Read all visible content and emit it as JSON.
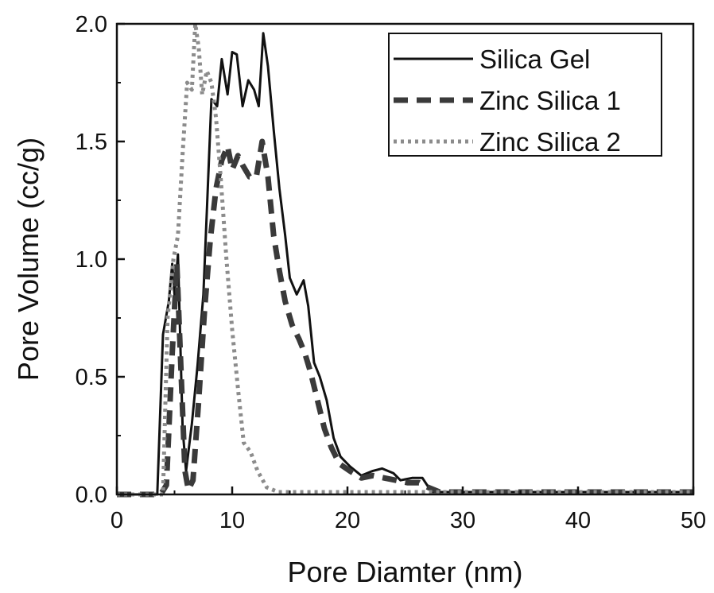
{
  "chart_data": {
    "type": "line",
    "title": "",
    "xlabel": "Pore Diamter (nm)",
    "ylabel": "Pore Volume (cc/g)",
    "xlim": [
      0,
      50
    ],
    "ylim": [
      0,
      2.0
    ],
    "xticks": [
      0,
      10,
      20,
      30,
      40,
      50
    ],
    "yticks": [
      0.0,
      0.5,
      1.0,
      1.5,
      2.0
    ],
    "xtick_labels": [
      "0",
      "10",
      "20",
      "30",
      "40",
      "50"
    ],
    "ytick_labels": [
      "0.0",
      "0.5",
      "1.0",
      "1.5",
      "2.0"
    ],
    "grid": false,
    "legend_position": "top-right",
    "series": [
      {
        "name": "Silica Gel",
        "line_style": "solid",
        "color": "#111111",
        "points": [
          [
            0,
            0
          ],
          [
            3.5,
            0
          ],
          [
            4.0,
            0.68
          ],
          [
            4.5,
            0.82
          ],
          [
            4.8,
            0.98
          ],
          [
            5.0,
            0.85
          ],
          [
            5.3,
            1.02
          ],
          [
            5.7,
            0.28
          ],
          [
            6.0,
            0.1
          ],
          [
            6.5,
            0.3
          ],
          [
            7.0,
            0.55
          ],
          [
            7.5,
            0.85
          ],
          [
            7.8,
            1.2
          ],
          [
            8.2,
            1.68
          ],
          [
            8.7,
            1.65
          ],
          [
            9.1,
            1.85
          ],
          [
            9.6,
            1.7
          ],
          [
            10.0,
            1.88
          ],
          [
            10.4,
            1.87
          ],
          [
            10.9,
            1.65
          ],
          [
            11.4,
            1.76
          ],
          [
            11.9,
            1.72
          ],
          [
            12.3,
            1.65
          ],
          [
            12.7,
            1.96
          ],
          [
            13.1,
            1.82
          ],
          [
            13.6,
            1.55
          ],
          [
            14.1,
            1.3
          ],
          [
            14.6,
            1.1
          ],
          [
            15.0,
            0.92
          ],
          [
            15.6,
            0.85
          ],
          [
            16.2,
            0.91
          ],
          [
            16.6,
            0.8
          ],
          [
            17.1,
            0.56
          ],
          [
            17.6,
            0.5
          ],
          [
            18.2,
            0.4
          ],
          [
            18.8,
            0.24
          ],
          [
            19.4,
            0.16
          ],
          [
            20.2,
            0.12
          ],
          [
            21.2,
            0.08
          ],
          [
            22.2,
            0.1
          ],
          [
            23.0,
            0.11
          ],
          [
            24.0,
            0.09
          ],
          [
            24.6,
            0.06
          ],
          [
            25.6,
            0.07
          ],
          [
            26.5,
            0.07
          ],
          [
            27.3,
            0.01
          ],
          [
            28.2,
            0.01
          ],
          [
            50.0,
            0.01
          ]
        ]
      },
      {
        "name": "Zinc Silica 1",
        "line_style": "dash",
        "color": "#3a3a3a",
        "points": [
          [
            0,
            0
          ],
          [
            3.8,
            0
          ],
          [
            4.3,
            0.04
          ],
          [
            4.8,
            0.6
          ],
          [
            5.2,
            0.98
          ],
          [
            5.5,
            0.6
          ],
          [
            5.9,
            0.1
          ],
          [
            6.2,
            0.02
          ],
          [
            6.6,
            0.06
          ],
          [
            7.1,
            0.4
          ],
          [
            7.6,
            0.78
          ],
          [
            8.1,
            1.08
          ],
          [
            8.6,
            1.3
          ],
          [
            9.1,
            1.42
          ],
          [
            9.6,
            1.48
          ],
          [
            10.0,
            1.38
          ],
          [
            10.5,
            1.44
          ],
          [
            10.9,
            1.4
          ],
          [
            11.5,
            1.35
          ],
          [
            12.1,
            1.35
          ],
          [
            12.6,
            1.5
          ],
          [
            13.1,
            1.35
          ],
          [
            13.6,
            1.1
          ],
          [
            14.1,
            0.95
          ],
          [
            14.6,
            0.82
          ],
          [
            15.2,
            0.72
          ],
          [
            15.8,
            0.66
          ],
          [
            16.3,
            0.6
          ],
          [
            16.8,
            0.52
          ],
          [
            17.4,
            0.4
          ],
          [
            18.0,
            0.28
          ],
          [
            18.6,
            0.2
          ],
          [
            19.3,
            0.13
          ],
          [
            20.2,
            0.1
          ],
          [
            21.2,
            0.07
          ],
          [
            22.2,
            0.08
          ],
          [
            23.2,
            0.07
          ],
          [
            24.2,
            0.06
          ],
          [
            25.2,
            0.05
          ],
          [
            26.2,
            0.05
          ],
          [
            27.0,
            0.03
          ],
          [
            28.0,
            0.01
          ],
          [
            50.0,
            0.01
          ]
        ]
      },
      {
        "name": "Zinc Silica 2",
        "line_style": "dot",
        "color": "#8c8c8c",
        "points": [
          [
            0,
            0
          ],
          [
            4.0,
            0
          ],
          [
            4.4,
            0.75
          ],
          [
            4.9,
            1.0
          ],
          [
            5.3,
            1.1
          ],
          [
            5.7,
            1.45
          ],
          [
            6.1,
            1.75
          ],
          [
            6.5,
            1.72
          ],
          [
            6.8,
            2.0
          ],
          [
            7.1,
            1.9
          ],
          [
            7.4,
            1.7
          ],
          [
            7.8,
            1.8
          ],
          [
            8.2,
            1.75
          ],
          [
            8.6,
            1.6
          ],
          [
            9.0,
            1.35
          ],
          [
            9.5,
            1.0
          ],
          [
            10.0,
            0.7
          ],
          [
            10.5,
            0.45
          ],
          [
            11.0,
            0.22
          ],
          [
            11.6,
            0.18
          ],
          [
            12.2,
            0.1
          ],
          [
            13.0,
            0.03
          ],
          [
            14.0,
            0.01
          ],
          [
            50.0,
            0.01
          ]
        ]
      }
    ]
  }
}
